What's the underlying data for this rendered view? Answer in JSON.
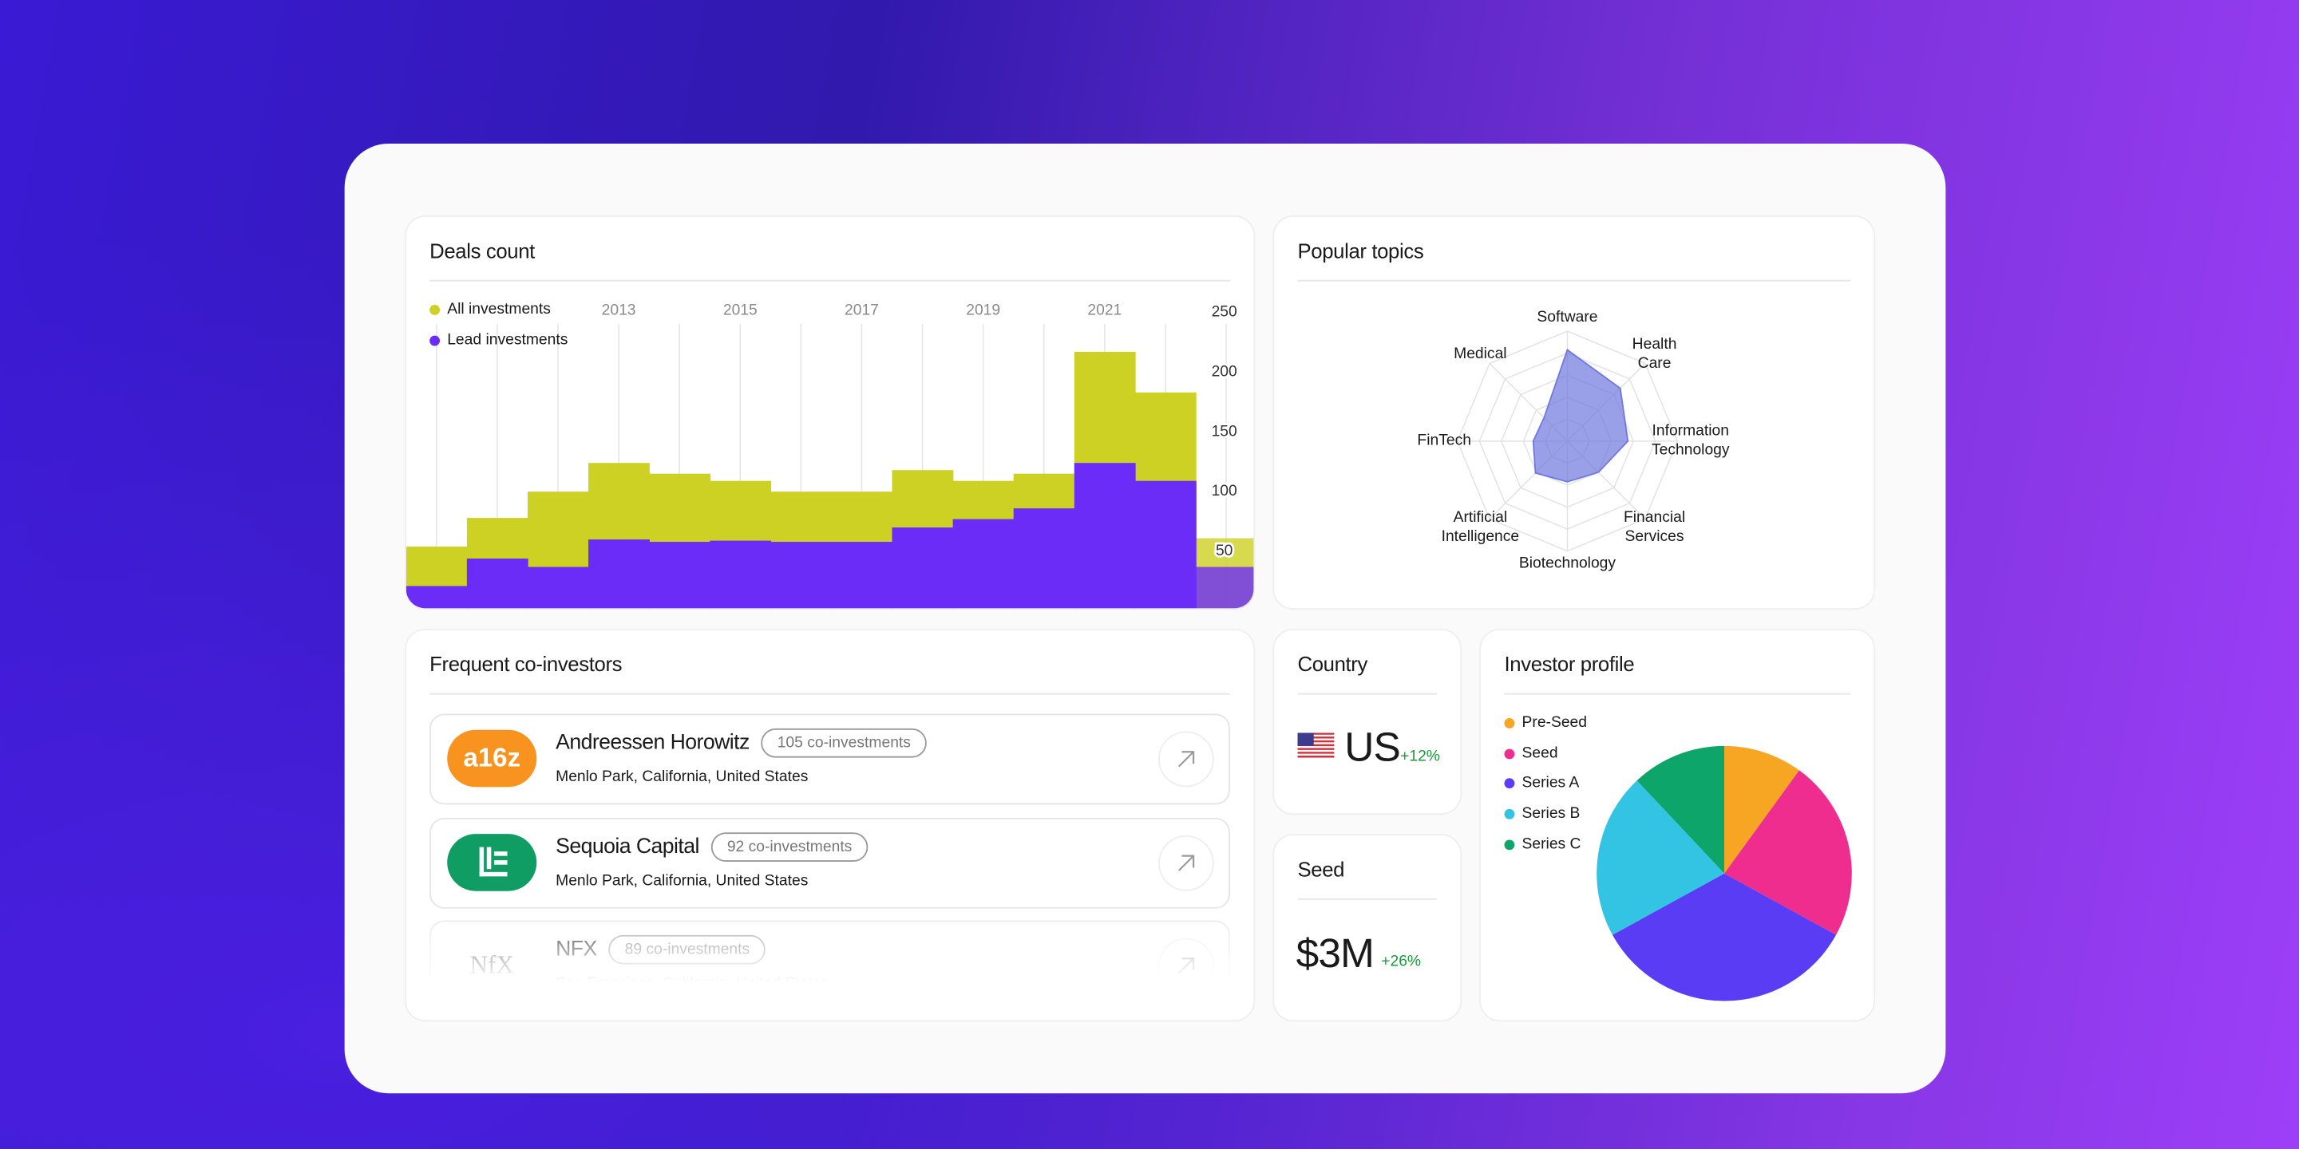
{
  "chart_data": [
    {
      "type": "bar",
      "title": "Deals count",
      "stacked": false,
      "categories": [
        null,
        null,
        null,
        "2013",
        null,
        "2015",
        null,
        "2017",
        null,
        "2019",
        null,
        "2021",
        null,
        null
      ],
      "series": [
        {
          "name": "All investments",
          "color": "#cdd123",
          "values": [
            54,
            78,
            100,
            124,
            115,
            109,
            100,
            100,
            118,
            109,
            115,
            217,
            183,
            61
          ]
        },
        {
          "name": "Lead investments",
          "color": "#6a2cf6",
          "values": [
            21,
            44,
            37,
            60,
            58,
            59,
            58,
            58,
            70,
            77,
            86,
            124,
            109,
            37
          ]
        }
      ],
      "ylim": [
        0,
        260
      ],
      "yticks": [
        50,
        100,
        150,
        200,
        250
      ],
      "x_grid": true,
      "legend": "top-left"
    },
    {
      "type": "radar",
      "title": "Popular topics",
      "categories": [
        "Software",
        "Health Care",
        "Information Technology",
        "Financial Services",
        "Biotechnology",
        "Artificial Intelligence",
        "FinTech",
        "Medical"
      ],
      "values": [
        83,
        68,
        55,
        40,
        37,
        41,
        31,
        30
      ],
      "rlim": [
        0,
        100
      ],
      "color": "#6f78dd"
    },
    {
      "type": "pie",
      "title": "Investor profile",
      "categories": [
        "Pre-Seed",
        "Seed",
        "Series A",
        "Series B",
        "Series C"
      ],
      "values": [
        10,
        23,
        34,
        21,
        12
      ],
      "colors": [
        "#f6a623",
        "#ee2d8f",
        "#5b3cf5",
        "#33c3e3",
        "#0ea56b"
      ]
    }
  ],
  "co_investors": {
    "title": "Frequent co-investors",
    "items": [
      {
        "logo": "a16z",
        "logo_color": "#f7931e",
        "name": "Andreessen Horowitz",
        "badge": "105 co-investments",
        "location": "Menlo Park, California, United States"
      },
      {
        "logo_color": "#0f9d63",
        "name": "Sequoia Capital",
        "badge": "92 co-investments",
        "location": "Menlo Park, California, United States"
      },
      {
        "logo": "NfX",
        "name": "NFX",
        "badge": "89 co-investments",
        "location": "San Francisco, California, United States"
      }
    ]
  },
  "country": {
    "title": "Country",
    "value": "US",
    "change": "+12%"
  },
  "seed": {
    "title": "Seed",
    "value": "$3M",
    "change": "+26%"
  }
}
